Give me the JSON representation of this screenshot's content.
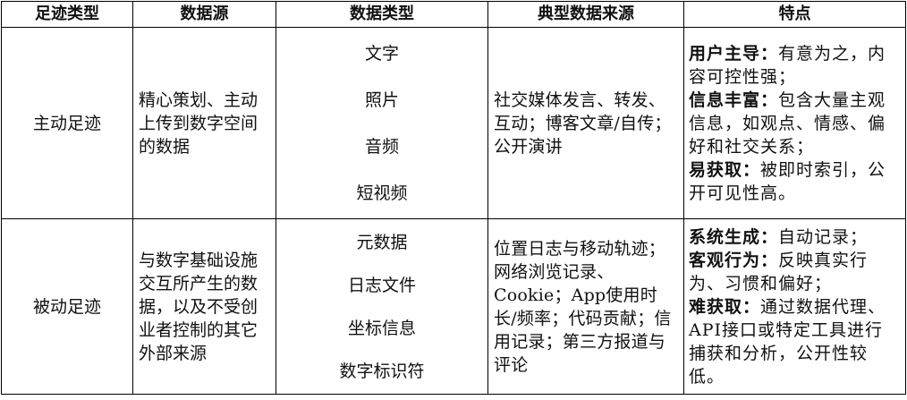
{
  "headers": [
    "足迹类型",
    "数据源",
    "数据类型",
    "典型数据来源",
    "特点"
  ],
  "rows": [
    {
      "type": "主动足迹",
      "source": "精心策划、主动上传到数字空间的数据",
      "data_types": [
        "文字",
        "照片",
        "音频",
        "短视频"
      ],
      "typical_sources": "社交媒体发言、转发、互动；博客文章/自传；公开演讲",
      "features": [
        {
          "label": "用户主导：",
          "text": "有意为之，内容可控性强；"
        },
        {
          "label": "信息丰富：",
          "text": "包含大量主观信息，如观点、情感、偏好和社交关系；"
        },
        {
          "label": "易获取：",
          "text": "被即时索引，公开可见性高。"
        }
      ]
    },
    {
      "type": "被动足迹",
      "source": "与数字基础设施交互所产生的数据，以及不受创业者控制的其它外部来源",
      "data_types": [
        "元数据",
        "日志文件",
        "坐标信息",
        "数字标识符"
      ],
      "typical_sources": "位置日志与移动轨迹；网络浏览记录、Cookie；App使用时长/频率；代码贡献；信用记录；第三方报道与评论",
      "features": [
        {
          "label": "系统生成：",
          "text": "自动记录；"
        },
        {
          "label": "客观行为：",
          "text": "反映真实行为、习惯和偏好；"
        },
        {
          "label": "难获取：",
          "text": "通过数据代理、API接口或特定工具进行捕获和分析，公开性较低。"
        }
      ]
    }
  ]
}
